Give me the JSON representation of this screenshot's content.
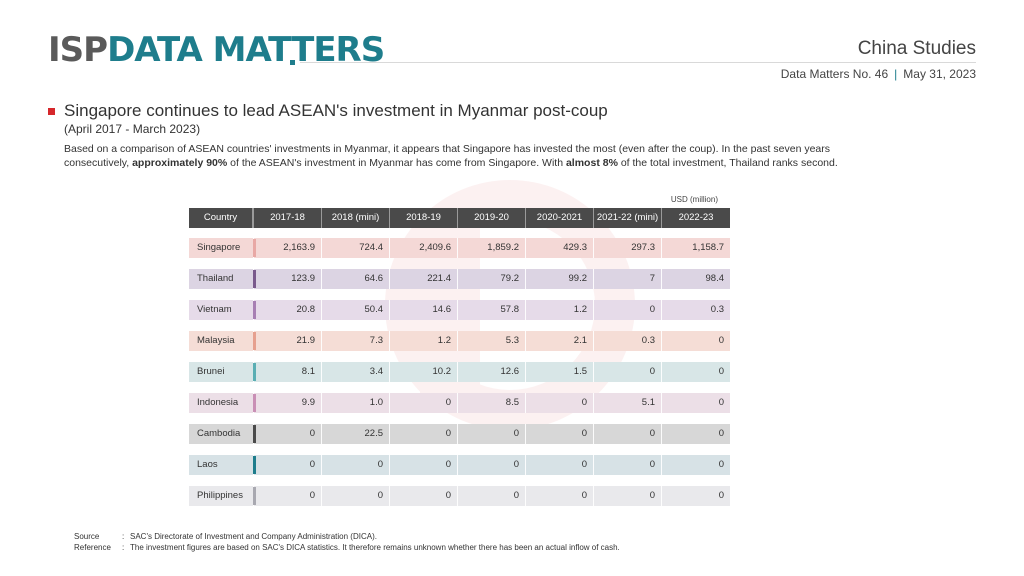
{
  "header": {
    "logo_part1": "ISP",
    "logo_part2": "DATA MATTERS",
    "series_name": "China Studies",
    "issue": "Data Matters No. 46",
    "separator": "|",
    "date": "May 31, 2023"
  },
  "title": {
    "text": "Singapore continues to lead ASEAN's investment in Myanmar post-coup",
    "subtitle": "(April 2017 - March 2023)"
  },
  "summary": {
    "part1": "Based on a comparison of ASEAN countries' investments in Myanmar, it appears that Singapore has invested the most (even after the coup). In the past seven years consecutively, ",
    "bold1": "approximately 90%",
    "part2": " of the ASEAN's investment in Myanmar has come from Singapore. With ",
    "bold2": "almost 8%",
    "part3": " of the total investment, Thailand ranks second."
  },
  "colors": {
    "teal": "#1e7d8c",
    "red_marker": "#d6272b",
    "header_bg": "#4a4a4a"
  },
  "chart_data": {
    "type": "table",
    "unit": "USD (million)",
    "columns": [
      "Country",
      "2017-18",
      "2018 (mini)",
      "2018-19",
      "2019-20",
      "2020-2021",
      "2021-22 (mini)",
      "2022-23"
    ],
    "rows": [
      {
        "country": "Singapore",
        "color": "#f4d8d6",
        "accent": "#e8a8a5",
        "values": [
          "2,163.9",
          "724.4",
          "2,409.6",
          "1,859.2",
          "429.3",
          "297.3",
          "1,158.7"
        ]
      },
      {
        "country": "Thailand",
        "color": "#dcd4e3",
        "accent": "#7a5a8c",
        "values": [
          "123.9",
          "64.6",
          "221.4",
          "79.2",
          "99.2",
          "7",
          "98.4"
        ]
      },
      {
        "country": "Vietnam",
        "color": "#e6dbe9",
        "accent": "#a77fb3",
        "values": [
          "20.8",
          "50.4",
          "14.6",
          "57.8",
          "1.2",
          "0",
          "0.3"
        ]
      },
      {
        "country": "Malaysia",
        "color": "#f5ddd6",
        "accent": "#e6a08f",
        "values": [
          "21.9",
          "7.3",
          "1.2",
          "5.3",
          "2.1",
          "0.3",
          "0"
        ]
      },
      {
        "country": "Brunei",
        "color": "#d8e6e7",
        "accent": "#5aaeb3",
        "values": [
          "8.1",
          "3.4",
          "10.2",
          "12.6",
          "1.5",
          "0",
          "0"
        ]
      },
      {
        "country": "Indonesia",
        "color": "#ecdfe7",
        "accent": "#c98fb5",
        "values": [
          "9.9",
          "1.0",
          "0",
          "8.5",
          "0",
          "5.1",
          "0"
        ]
      },
      {
        "country": "Cambodia",
        "color": "#d7d7d7",
        "accent": "#4a4a4a",
        "values": [
          "0",
          "22.5",
          "0",
          "0",
          "0",
          "0",
          "0"
        ]
      },
      {
        "country": "Laos",
        "color": "#d7e2e6",
        "accent": "#1e7d8c",
        "values": [
          "0",
          "0",
          "0",
          "0",
          "0",
          "0",
          "0"
        ]
      },
      {
        "country": "Philippines",
        "color": "#e9e9ec",
        "accent": "#a8a8b0",
        "values": [
          "0",
          "0",
          "0",
          "0",
          "0",
          "0",
          "0"
        ]
      }
    ]
  },
  "footer": {
    "source_label": "Source",
    "source_colon": ":",
    "source_text": "SAC's Directorate of Investment and Company Administration (DICA).",
    "reference_label": "Reference",
    "reference_colon": ":",
    "reference_text": "The investment figures are based on SAC's DICA statistics. It therefore remains unknown whether there has been an actual inflow of cash."
  }
}
